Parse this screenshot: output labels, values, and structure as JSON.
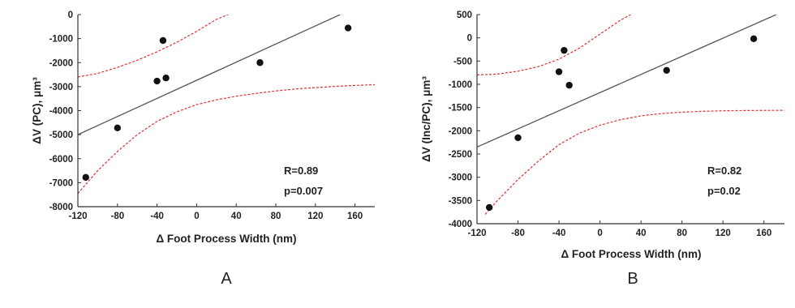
{
  "chart_data": [
    {
      "type": "scatter",
      "panel_label": "A",
      "xlabel": "Δ Foot Process Width (nm)",
      "ylabel": "ΔV (PC), μm³",
      "xlim": [
        -120,
        180
      ],
      "ylim": [
        -8000,
        0
      ],
      "xticks": [
        -120,
        -80,
        -40,
        0,
        40,
        80,
        120,
        160
      ],
      "yticks": [
        0,
        -1000,
        -2000,
        -3000,
        -4000,
        -5000,
        -6000,
        -7000,
        -8000
      ],
      "grid": false,
      "series": [
        {
          "points": [
            {
              "x": -112,
              "y": -6780
            },
            {
              "x": -80,
              "y": -4720
            },
            {
              "x": -40,
              "y": -2770
            },
            {
              "x": -34,
              "y": -1080
            },
            {
              "x": -31,
              "y": -2640
            },
            {
              "x": 64,
              "y": -2000
            },
            {
              "x": 153,
              "y": -560
            }
          ]
        }
      ],
      "fit_line": {
        "x": [
          -120,
          145
        ],
        "y": [
          -5000,
          0
        ],
        "color": "#555555"
      },
      "ci_upper": [
        {
          "x": -120,
          "y": -2600
        },
        {
          "x": -100,
          "y": -2450
        },
        {
          "x": -80,
          "y": -2200
        },
        {
          "x": -60,
          "y": -1900
        },
        {
          "x": -40,
          "y": -1550
        },
        {
          "x": -20,
          "y": -1150
        },
        {
          "x": 0,
          "y": -700
        },
        {
          "x": 20,
          "y": -200
        },
        {
          "x": 32,
          "y": 0
        }
      ],
      "ci_lower": [
        {
          "x": -120,
          "y": -7450
        },
        {
          "x": -100,
          "y": -6500
        },
        {
          "x": -80,
          "y": -5700
        },
        {
          "x": -60,
          "y": -5000
        },
        {
          "x": -40,
          "y": -4450
        },
        {
          "x": -20,
          "y": -4050
        },
        {
          "x": 0,
          "y": -3750
        },
        {
          "x": 20,
          "y": -3550
        },
        {
          "x": 40,
          "y": -3400
        },
        {
          "x": 60,
          "y": -3280
        },
        {
          "x": 80,
          "y": -3180
        },
        {
          "x": 100,
          "y": -3100
        },
        {
          "x": 120,
          "y": -3040
        },
        {
          "x": 140,
          "y": -2990
        },
        {
          "x": 160,
          "y": -2950
        },
        {
          "x": 180,
          "y": -2920
        }
      ],
      "ci_color": "#e03030",
      "annotations": [
        "R=0.89",
        "p=0.007"
      ]
    },
    {
      "type": "scatter",
      "panel_label": "B",
      "xlabel": "Δ Foot Process Width (nm)",
      "ylabel": "ΔV (Inc/PC), μm³",
      "xlim": [
        -120,
        180
      ],
      "ylim": [
        -4000,
        500
      ],
      "xticks": [
        -120,
        -80,
        -40,
        0,
        40,
        80,
        120,
        160
      ],
      "yticks": [
        500,
        0,
        -500,
        -1000,
        -1500,
        -2000,
        -2500,
        -3000,
        -3500,
        -4000
      ],
      "grid": false,
      "series": [
        {
          "points": [
            {
              "x": -108,
              "y": -3650
            },
            {
              "x": -80,
              "y": -2150
            },
            {
              "x": -40,
              "y": -730
            },
            {
              "x": -35,
              "y": -270
            },
            {
              "x": -30,
              "y": -1020
            },
            {
              "x": 65,
              "y": -700
            },
            {
              "x": 150,
              "y": -20
            }
          ]
        }
      ],
      "fit_line": {
        "x": [
          -120,
          172
        ],
        "y": [
          -2350,
          500
        ],
        "color": "#555555"
      },
      "ci_upper": [
        {
          "x": -120,
          "y": -800
        },
        {
          "x": -100,
          "y": -780
        },
        {
          "x": -80,
          "y": -720
        },
        {
          "x": -60,
          "y": -620
        },
        {
          "x": -40,
          "y": -460
        },
        {
          "x": -20,
          "y": -220
        },
        {
          "x": 0,
          "y": 80
        },
        {
          "x": 20,
          "y": 380
        },
        {
          "x": 30,
          "y": 500
        }
      ],
      "ci_lower": [
        {
          "x": -112,
          "y": -3800
        },
        {
          "x": -100,
          "y": -3500
        },
        {
          "x": -80,
          "y": -3050
        },
        {
          "x": -60,
          "y": -2650
        },
        {
          "x": -40,
          "y": -2300
        },
        {
          "x": -20,
          "y": -2050
        },
        {
          "x": 0,
          "y": -1880
        },
        {
          "x": 20,
          "y": -1760
        },
        {
          "x": 40,
          "y": -1680
        },
        {
          "x": 60,
          "y": -1630
        },
        {
          "x": 80,
          "y": -1600
        },
        {
          "x": 100,
          "y": -1580
        },
        {
          "x": 120,
          "y": -1570
        },
        {
          "x": 140,
          "y": -1565
        },
        {
          "x": 180,
          "y": -1560
        }
      ],
      "ci_color": "#e03030",
      "annotations": [
        "R=0.82",
        "p=0.02"
      ]
    }
  ]
}
